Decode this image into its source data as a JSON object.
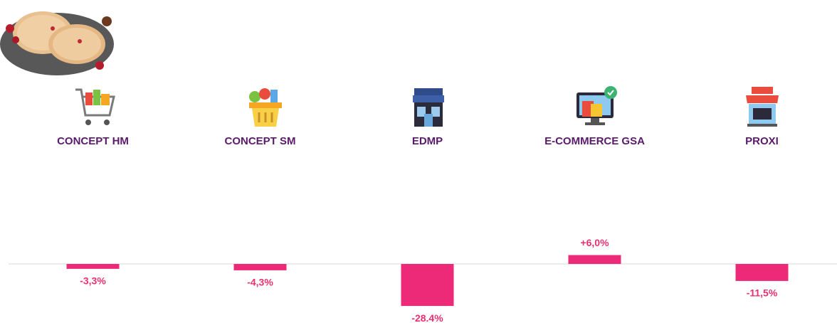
{
  "chart_data": {
    "type": "bar",
    "categories": [
      "CONCEPT HM",
      "CONCEPT SM",
      "EDMP",
      "E-COMMERCE GSA",
      "PROXI"
    ],
    "values": [
      -3.3,
      -4.3,
      -28.4,
      6.0,
      -11.5
    ],
    "value_labels": [
      "-3,3%",
      "-4,3%",
      "-28.4%",
      "+6,0%",
      "-11,5%"
    ],
    "color": "#ec2a77"
  }
}
